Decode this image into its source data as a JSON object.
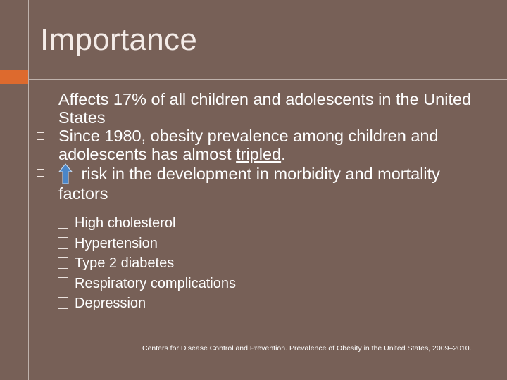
{
  "slide": {
    "title": "Importance",
    "bullets": [
      {
        "text": "Affects 17% of all children and adolescents in the United States"
      },
      {
        "text_before": "Since 1980, obesity prevalence among children and adolescents has almost ",
        "underlined": "tripled",
        "text_after": "."
      },
      {
        "text": " risk in the development in morbidity and mortality factors",
        "icon": "up-arrow-icon"
      }
    ],
    "sub_items": [
      "High cholesterol",
      "Hypertension",
      "Type 2 diabetes",
      "Respiratory complications",
      "Depression"
    ],
    "citation": "Centers for Disease Control and Prevention. Prevalence of Obesity in the United States, 2009–2010."
  },
  "colors": {
    "background": "#776057",
    "accent": "#dd6a2e",
    "arrow": "#4a86c8"
  }
}
